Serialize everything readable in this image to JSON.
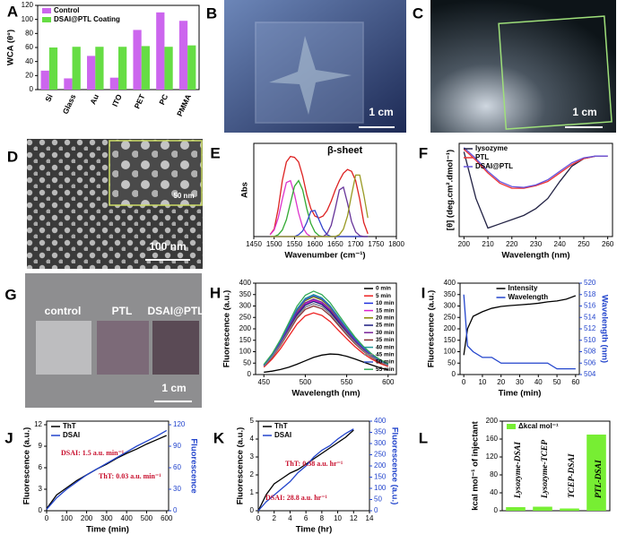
{
  "chart_data": [
    {
      "panel": "A",
      "type": "bar",
      "categories": [
        "Si",
        "Glass",
        "Au",
        "ITO",
        "PET",
        "PC",
        "PMMA"
      ],
      "series": [
        {
          "name": "Control",
          "color": "#cc66ee",
          "values": [
            27,
            16,
            48,
            17,
            85,
            110,
            98
          ]
        },
        {
          "name": "DSAI@PTL Coating",
          "color": "#66dd44",
          "values": [
            60,
            61,
            61,
            61,
            62,
            61,
            63
          ]
        }
      ],
      "ylim": [
        0,
        120
      ],
      "yticks": [
        0,
        20,
        40,
        60,
        80,
        100,
        120
      ],
      "ylabel": "WCA (θ°)",
      "legend": "upper left"
    },
    {
      "panel": "E",
      "type": "line",
      "x": [
        1490,
        1500,
        1510,
        1520,
        1530,
        1540,
        1550,
        1560,
        1570,
        1580,
        1590,
        1600,
        1610,
        1620,
        1630,
        1640,
        1650,
        1660,
        1670,
        1680,
        1690,
        1700,
        1710,
        1720,
        1730
      ],
      "series": [
        {
          "color": "#dd2222",
          "values": [
            0.02,
            0.08,
            0.3,
            0.6,
            0.8,
            0.86,
            0.85,
            0.8,
            0.65,
            0.45,
            0.3,
            0.22,
            0.2,
            0.22,
            0.28,
            0.38,
            0.5,
            0.6,
            0.68,
            0.72,
            0.7,
            0.6,
            0.4,
            0.15,
            0.03
          ]
        },
        {
          "color": "#dd33cc",
          "values": [
            0.02,
            0.07,
            0.2,
            0.4,
            0.58,
            0.6,
            0.45,
            0.25,
            0.1,
            0.03,
            0,
            0,
            0,
            0,
            0,
            0,
            0,
            0,
            0,
            0,
            0,
            0,
            0,
            0,
            0
          ]
        },
        {
          "color": "#33aa33",
          "values": [
            0,
            0,
            0.02,
            0.07,
            0.18,
            0.36,
            0.54,
            0.6,
            0.5,
            0.3,
            0.14,
            0.05,
            0.01,
            0,
            0,
            0,
            0,
            0,
            0,
            0,
            0,
            0,
            0,
            0,
            0
          ]
        },
        {
          "color": "#3344cc",
          "values": [
            0,
            0,
            0,
            0,
            0,
            0,
            0,
            0.02,
            0.06,
            0.15,
            0.27,
            0.28,
            0.18,
            0.08,
            0.02,
            0,
            0,
            0,
            0,
            0,
            0,
            0,
            0,
            0,
            0
          ]
        },
        {
          "color": "#663399",
          "values": [
            0,
            0,
            0,
            0,
            0,
            0,
            0,
            0,
            0,
            0,
            0,
            0,
            0,
            0,
            0.03,
            0.12,
            0.3,
            0.5,
            0.53,
            0.36,
            0.16,
            0.05,
            0.01,
            0,
            0
          ]
        },
        {
          "color": "#999922",
          "values": [
            0,
            0,
            0,
            0,
            0,
            0,
            0,
            0,
            0,
            0,
            0,
            0,
            0,
            0,
            0,
            0,
            0,
            0.02,
            0.08,
            0.22,
            0.45,
            0.66,
            0.66,
            0.45,
            0.2
          ]
        }
      ],
      "xlim": [
        1450,
        1800
      ],
      "xticks": [
        1450,
        1500,
        1550,
        1600,
        1650,
        1700,
        1750,
        1800
      ],
      "ylim": [
        0,
        1
      ],
      "xlabel": "Wavenumber (cm⁻¹)",
      "ylabel": "Abs",
      "annotations": [
        "β-sheet"
      ]
    },
    {
      "panel": "F",
      "type": "line",
      "x": [
        200,
        205,
        210,
        215,
        220,
        225,
        230,
        235,
        240,
        245,
        250,
        255,
        260
      ],
      "series": [
        {
          "name": "lysozyme",
          "color": "#222244",
          "values": [
            0.05,
            -0.5,
            -0.85,
            -0.8,
            -0.75,
            -0.7,
            -0.62,
            -0.5,
            -0.3,
            -0.12,
            -0.03,
            0,
            0
          ]
        },
        {
          "name": "PTL",
          "color": "#ee3333",
          "values": [
            0.08,
            -0.05,
            -0.2,
            -0.32,
            -0.38,
            -0.38,
            -0.35,
            -0.3,
            -0.2,
            -0.1,
            -0.03,
            0,
            0
          ]
        },
        {
          "name": "DSAI@PTL",
          "color": "#6655dd",
          "values": [
            0.1,
            -0.03,
            -0.18,
            -0.3,
            -0.36,
            -0.37,
            -0.34,
            -0.28,
            -0.18,
            -0.08,
            -0.02,
            0,
            0
          ]
        }
      ],
      "xlim": [
        198,
        262
      ],
      "xticks": [
        200,
        210,
        220,
        230,
        240,
        250,
        260
      ],
      "ylim": [
        -0.95,
        0.15
      ],
      "xlabel": "Wavelength (nm)",
      "ylabel": "[θ] (deg.cm².dmol⁻¹)",
      "legend": "upper left"
    },
    {
      "panel": "H",
      "type": "line",
      "x": [
        450,
        460,
        470,
        480,
        490,
        500,
        510,
        520,
        530,
        540,
        550,
        560,
        570,
        580,
        590,
        600
      ],
      "series": [
        {
          "name": "0 min",
          "color": "#000000",
          "values": [
            10,
            15,
            22,
            32,
            45,
            60,
            75,
            85,
            90,
            88,
            80,
            68,
            55,
            42,
            30,
            20
          ]
        },
        {
          "name": "5 min",
          "color": "#ee2222",
          "values": [
            32,
            68,
            113,
            167,
            221,
            257,
            270,
            259,
            232,
            194,
            157,
            122,
            92,
            68,
            49,
            35
          ]
        },
        {
          "name": "10 min",
          "color": "#2233dd",
          "values": [
            37,
            78,
            130,
            192,
            254,
            295,
            310,
            298,
            267,
            223,
            180,
            140,
            105,
            78,
            56,
            40
          ]
        },
        {
          "name": "15 min",
          "color": "#dd22cc",
          "values": [
            39,
            81,
            137,
            202,
            267,
            309,
            325,
            312,
            280,
            234,
            189,
            146,
            111,
            81,
            59,
            42
          ]
        },
        {
          "name": "20 min",
          "color": "#888800",
          "values": [
            41,
            85,
            143,
            211,
            279,
            323,
            340,
            326,
            292,
            245,
            197,
            153,
            116,
            85,
            61,
            44
          ]
        },
        {
          "name": "25 min",
          "color": "#1a1a80",
          "values": [
            38,
            80,
            134,
            198,
            262,
            304,
            320,
            307,
            275,
            230,
            186,
            144,
            109,
            80,
            58,
            42
          ]
        },
        {
          "name": "30 min",
          "color": "#772299",
          "values": [
            40,
            83,
            139,
            205,
            271,
            314,
            330,
            317,
            284,
            238,
            191,
            149,
            112,
            83,
            59,
            43
          ]
        },
        {
          "name": "35 min",
          "color": "#883333",
          "values": [
            36,
            75,
            126,
            186,
            246,
            285,
            300,
            288,
            258,
            216,
            174,
            135,
            102,
            75,
            54,
            39
          ]
        },
        {
          "name": "40 min",
          "color": "#229999",
          "values": [
            42,
            88,
            147,
            217,
            287,
            333,
            350,
            336,
            301,
            252,
            203,
            158,
            119,
            88,
            63,
            46
          ]
        },
        {
          "name": "45 min",
          "color": "#888888",
          "values": [
            37,
            78,
            130,
            192,
            254,
            295,
            310,
            298,
            267,
            223,
            180,
            140,
            105,
            78,
            56,
            40
          ]
        },
        {
          "name": "50 min",
          "color": "#3355cc",
          "values": [
            41,
            86,
            145,
            214,
            283,
            328,
            345,
            331,
            297,
            248,
            200,
            155,
            117,
            86,
            62,
            45
          ]
        },
        {
          "name": "55 min",
          "color": "#33aa55",
          "values": [
            44,
            91,
            153,
            226,
            299,
            347,
            365,
            350,
            314,
            263,
            212,
            164,
            124,
            91,
            66,
            47
          ]
        }
      ],
      "xlim": [
        440,
        610
      ],
      "xticks": [
        450,
        500,
        550,
        600
      ],
      "ylim": [
        0,
        400
      ],
      "yticks": [
        0,
        50,
        100,
        150,
        200,
        250,
        300,
        350,
        400
      ],
      "xlabel": "Wavelength (nm)",
      "ylabel": "Fluorescence (a.u.)",
      "legend": "upper right"
    },
    {
      "panel": "I",
      "type": "line",
      "x": [
        0,
        2,
        5,
        10,
        15,
        20,
        25,
        30,
        35,
        40,
        45,
        50,
        55,
        60
      ],
      "series": [
        {
          "name": "Intensity",
          "color": "#000000",
          "values": [
            85,
            200,
            255,
            275,
            290,
            298,
            302,
            305,
            308,
            312,
            318,
            322,
            330,
            345
          ]
        },
        {
          "name": "Wavelength",
          "color": "#2244cc",
          "axis": "y2",
          "values": [
            518,
            509,
            508,
            507,
            507,
            506,
            506,
            506,
            506,
            506,
            506,
            505,
            505,
            505
          ]
        }
      ],
      "xlim": [
        -2,
        62
      ],
      "xticks": [
        0,
        10,
        20,
        30,
        40,
        50,
        60
      ],
      "ylim": [
        0,
        400
      ],
      "yticks": [
        0,
        50,
        100,
        150,
        200,
        250,
        300,
        350,
        400
      ],
      "y2lim": [
        504,
        520
      ],
      "y2ticks": [
        504,
        506,
        508,
        510,
        512,
        514,
        516,
        518,
        520
      ],
      "xlabel": "Time (min)",
      "ylabel": "Fluorescence (a.u.)",
      "y2label": "Wavelength (nm)",
      "legend": "upper center"
    },
    {
      "panel": "J",
      "type": "line",
      "x": [
        0,
        50,
        100,
        150,
        200,
        250,
        300,
        350,
        400,
        450,
        500,
        550,
        600
      ],
      "series": [
        {
          "name": "ThT",
          "color": "#000000",
          "values": [
            0.3,
            2.2,
            3.2,
            4.2,
            5.0,
            5.8,
            6.5,
            7.3,
            8.0,
            8.6,
            9.3,
            9.9,
            10.5
          ]
        },
        {
          "name": "DSAI",
          "color": "#2244cc",
          "axis": "y2",
          "values": [
            2,
            18,
            30,
            40,
            50,
            58,
            66,
            74,
            82,
            90,
            97,
            104,
            112
          ]
        }
      ],
      "xlim": [
        0,
        610
      ],
      "xticks": [
        0,
        100,
        200,
        300,
        400,
        500,
        600
      ],
      "ylim": [
        0,
        12.5
      ],
      "yticks": [
        0,
        3,
        6,
        9,
        12
      ],
      "y2lim": [
        0,
        125
      ],
      "y2ticks": [
        0,
        30,
        60,
        90,
        120
      ],
      "xlabel": "Time (min)",
      "ylabel": "Fluorescence (a.u.)",
      "y2label": "Fluorescence",
      "legend": "upper left",
      "annotations": [
        "DSAI: 1.5 a.u. min⁻¹",
        "ThT: 0.03 a.u. min⁻¹"
      ]
    },
    {
      "panel": "K",
      "type": "line",
      "x": [
        0,
        1,
        2,
        3,
        4,
        5,
        6,
        7,
        8,
        9,
        10,
        11,
        12
      ],
      "series": [
        {
          "name": "ThT",
          "color": "#000000",
          "values": [
            0,
            0.9,
            1.5,
            1.8,
            2.1,
            2.3,
            2.6,
            2.9,
            3.2,
            3.5,
            3.8,
            4.1,
            4.5
          ]
        },
        {
          "name": "DSAI",
          "color": "#2244cc",
          "axis": "y2",
          "values": [
            0,
            40,
            70,
            100,
            130,
            170,
            200,
            240,
            270,
            290,
            320,
            345,
            365
          ]
        }
      ],
      "xlim": [
        0,
        14
      ],
      "xticks": [
        0,
        2,
        4,
        6,
        8,
        10,
        12,
        14
      ],
      "ylim": [
        0,
        5
      ],
      "yticks": [
        0,
        1,
        2,
        3,
        4,
        5
      ],
      "y2lim": [
        0,
        400
      ],
      "y2ticks": [
        0,
        50,
        100,
        150,
        200,
        250,
        300,
        350,
        400
      ],
      "xlabel": "Time (hr)",
      "ylabel": "Fluorescence (a.u.)",
      "y2label": "Fluorescence (a.u.)",
      "legend": "upper left",
      "annotations": [
        "ThT: 0.38 a.u. hr⁻¹",
        "DSAI: 28.8 a.u. hr⁻¹"
      ]
    },
    {
      "panel": "L",
      "type": "bar",
      "categories": [
        "Lysozyme-DSAI",
        "Lysozyme-TCEP",
        "TCEP-DSAI",
        "PTL-DSAI"
      ],
      "series": [
        {
          "name": "Δkcal mol⁻¹",
          "color": "#77ee33",
          "values": [
            8,
            9,
            5,
            170
          ]
        }
      ],
      "ylim": [
        0,
        200
      ],
      "yticks": [
        0,
        40,
        80,
        120,
        160,
        200
      ],
      "ylabel": "kcal mol⁻¹ of injectant",
      "legend": "upper left"
    }
  ],
  "photos": [
    {
      "panel": "B",
      "labels": [
        "1 cm"
      ]
    },
    {
      "panel": "C",
      "labels": [
        "1 cm"
      ]
    },
    {
      "panel": "D",
      "labels": [
        "50 nm",
        "100 nm"
      ]
    },
    {
      "panel": "G",
      "labels": [
        "control",
        "PTL",
        "DSAI@PTL",
        "1 cm"
      ]
    }
  ]
}
